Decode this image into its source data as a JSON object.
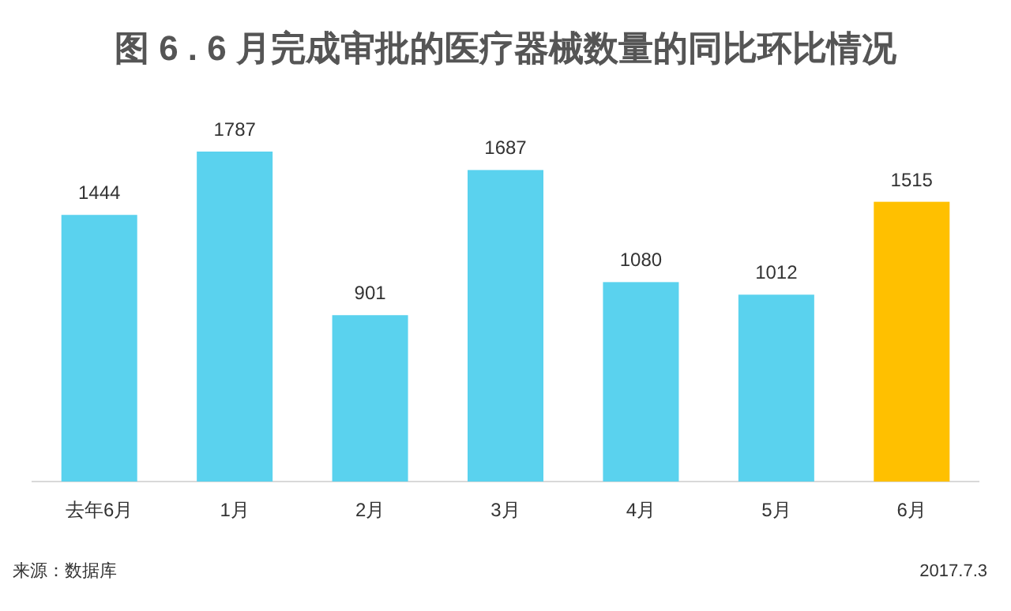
{
  "chart_data": {
    "type": "bar",
    "title": "图 6 . 6 月完成审批的医疗器械数量的同比环比情况",
    "categories": [
      "去年6月",
      "1月",
      "2月",
      "3月",
      "4月",
      "5月",
      "6月"
    ],
    "values": [
      1444,
      1787,
      901,
      1687,
      1080,
      1012,
      1515
    ],
    "colors": [
      "#5ad2ee",
      "#5ad2ee",
      "#5ad2ee",
      "#5ad2ee",
      "#5ad2ee",
      "#5ad2ee",
      "#ffc000"
    ],
    "data_labels": true,
    "annotations": [
      "来源：数据库",
      "2017.7.3"
    ]
  }
}
